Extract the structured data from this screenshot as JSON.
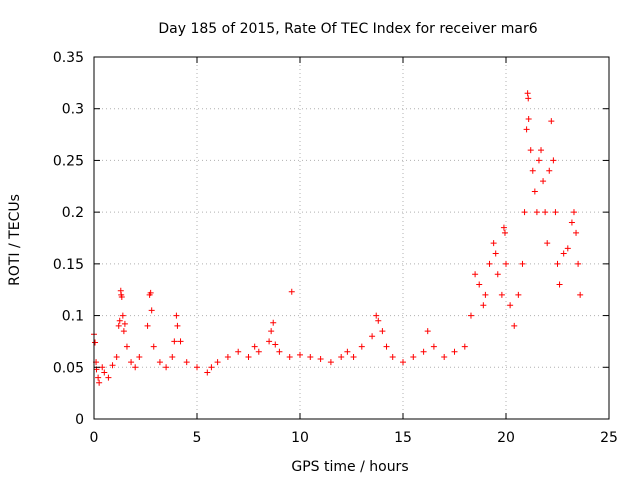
{
  "chart_data": {
    "type": "scatter",
    "title": "Day 185 of 2015, Rate Of TEC Index for receiver mar6",
    "xlabel": "GPS time / hours",
    "ylabel": "ROTI / TECUs",
    "xlim": [
      0,
      25
    ],
    "ylim": [
      0,
      0.35
    ],
    "xticks": [
      0,
      5,
      10,
      15,
      20,
      25
    ],
    "xtick_labels": [
      "0",
      "5",
      "10",
      "15",
      "20",
      "25"
    ],
    "yticks": [
      0,
      0.05,
      0.1,
      0.15,
      0.2,
      0.25,
      0.3,
      0.35
    ],
    "ytick_labels": [
      "0",
      "0.05",
      "0.1",
      "0.15",
      "0.2",
      "0.25",
      "0.3",
      "0.35"
    ],
    "grid": true,
    "marker": "+",
    "marker_color": "#ff0000",
    "series": [
      {
        "name": "ROTI",
        "points": [
          [
            0.0,
            0.082
          ],
          [
            0.05,
            0.074
          ],
          [
            0.1,
            0.055
          ],
          [
            0.12,
            0.048
          ],
          [
            0.2,
            0.04
          ],
          [
            0.25,
            0.035
          ],
          [
            0.4,
            0.05
          ],
          [
            0.5,
            0.045
          ],
          [
            0.7,
            0.04
          ],
          [
            0.9,
            0.052
          ],
          [
            1.1,
            0.06
          ],
          [
            1.2,
            0.09
          ],
          [
            1.25,
            0.095
          ],
          [
            1.3,
            0.124
          ],
          [
            1.32,
            0.12
          ],
          [
            1.35,
            0.118
          ],
          [
            1.4,
            0.1
          ],
          [
            1.45,
            0.085
          ],
          [
            1.5,
            0.092
          ],
          [
            1.6,
            0.07
          ],
          [
            1.8,
            0.055
          ],
          [
            2.0,
            0.05
          ],
          [
            2.2,
            0.06
          ],
          [
            2.6,
            0.09
          ],
          [
            2.7,
            0.12
          ],
          [
            2.75,
            0.122
          ],
          [
            2.8,
            0.105
          ],
          [
            2.9,
            0.07
          ],
          [
            3.2,
            0.055
          ],
          [
            3.5,
            0.05
          ],
          [
            3.8,
            0.06
          ],
          [
            3.9,
            0.075
          ],
          [
            4.0,
            0.1
          ],
          [
            4.05,
            0.09
          ],
          [
            4.2,
            0.075
          ],
          [
            4.5,
            0.055
          ],
          [
            5.0,
            0.05
          ],
          [
            5.5,
            0.045
          ],
          [
            5.7,
            0.05
          ],
          [
            6.0,
            0.055
          ],
          [
            6.5,
            0.06
          ],
          [
            7.0,
            0.065
          ],
          [
            7.5,
            0.06
          ],
          [
            7.8,
            0.07
          ],
          [
            8.0,
            0.065
          ],
          [
            8.5,
            0.075
          ],
          [
            8.6,
            0.085
          ],
          [
            8.7,
            0.093
          ],
          [
            8.8,
            0.072
          ],
          [
            9.0,
            0.065
          ],
          [
            9.5,
            0.06
          ],
          [
            9.6,
            0.123
          ],
          [
            10.0,
            0.062
          ],
          [
            10.5,
            0.06
          ],
          [
            11.0,
            0.058
          ],
          [
            11.5,
            0.055
          ],
          [
            12.0,
            0.06
          ],
          [
            12.3,
            0.065
          ],
          [
            12.6,
            0.06
          ],
          [
            13.0,
            0.07
          ],
          [
            13.5,
            0.08
          ],
          [
            13.7,
            0.1
          ],
          [
            13.8,
            0.095
          ],
          [
            14.0,
            0.085
          ],
          [
            14.2,
            0.07
          ],
          [
            14.5,
            0.06
          ],
          [
            15.0,
            0.055
          ],
          [
            15.5,
            0.06
          ],
          [
            16.0,
            0.065
          ],
          [
            16.2,
            0.085
          ],
          [
            16.5,
            0.07
          ],
          [
            17.0,
            0.06
          ],
          [
            17.5,
            0.065
          ],
          [
            18.0,
            0.07
          ],
          [
            18.3,
            0.1
          ],
          [
            18.5,
            0.14
          ],
          [
            18.7,
            0.13
          ],
          [
            18.9,
            0.11
          ],
          [
            19.0,
            0.12
          ],
          [
            19.2,
            0.15
          ],
          [
            19.4,
            0.17
          ],
          [
            19.5,
            0.16
          ],
          [
            19.6,
            0.14
          ],
          [
            19.8,
            0.12
          ],
          [
            19.9,
            0.185
          ],
          [
            19.95,
            0.18
          ],
          [
            20.0,
            0.15
          ],
          [
            20.2,
            0.11
          ],
          [
            20.4,
            0.09
          ],
          [
            20.6,
            0.12
          ],
          [
            20.8,
            0.15
          ],
          [
            20.9,
            0.2
          ],
          [
            21.0,
            0.28
          ],
          [
            21.05,
            0.315
          ],
          [
            21.08,
            0.31
          ],
          [
            21.1,
            0.29
          ],
          [
            21.2,
            0.26
          ],
          [
            21.3,
            0.24
          ],
          [
            21.4,
            0.22
          ],
          [
            21.5,
            0.2
          ],
          [
            21.6,
            0.25
          ],
          [
            21.7,
            0.26
          ],
          [
            21.8,
            0.23
          ],
          [
            21.9,
            0.2
          ],
          [
            22.0,
            0.17
          ],
          [
            22.1,
            0.24
          ],
          [
            22.2,
            0.288
          ],
          [
            22.3,
            0.25
          ],
          [
            22.4,
            0.2
          ],
          [
            22.5,
            0.15
          ],
          [
            22.6,
            0.13
          ],
          [
            22.8,
            0.16
          ],
          [
            23.0,
            0.165
          ],
          [
            23.2,
            0.19
          ],
          [
            23.3,
            0.2
          ],
          [
            23.4,
            0.18
          ],
          [
            23.5,
            0.15
          ],
          [
            23.6,
            0.12
          ]
        ]
      }
    ]
  }
}
